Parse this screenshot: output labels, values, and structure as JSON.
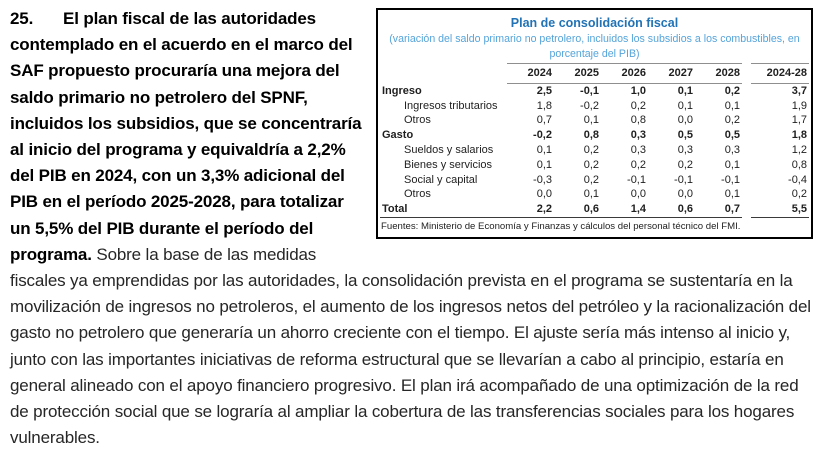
{
  "paragraph": {
    "number": "25.",
    "bold_text": "El plan fiscal de las autoridades contemplado en el acuerdo en el marco del SAF propuesto procuraría una mejora del saldo primario no petrolero del SPNF, incluidos los subsidios, que se concentraría al inicio del programa y equivaldría a 2,2% del PIB en 2024, con un 3,3% adicional del PIB en el período 2025-2028, para totalizar un 5,5% del PIB durante el período del programa.",
    "regular_text": "Sobre la base de las medidas fiscales ya emprendidas por las autoridades, la consolidación prevista en el programa se sustentaría en la movilización de ingresos no petroleros, el aumento de los ingresos netos del petróleo y la racionalización del gasto no petrolero que generaría un ahorro creciente con el tiempo. El ajuste sería más intenso al inicio y, junto con las importantes iniciativas de reforma estructural que se llevarían a cabo al principio, estaría en general alineado con el apoyo financiero progresivo. El plan irá acompañado de una optimización de la red de protección social que se lograría al ampliar la cobertura de las transferencias sociales para los hogares vulnerables."
  },
  "table": {
    "title": "Plan de consolidación fiscal",
    "subtitle": "(variación del saldo primario no petrolero, incluidos los subsidios a los combustibles, en porcentaje del PIB)",
    "columns": [
      "2024",
      "2025",
      "2026",
      "2027",
      "2028",
      "2024-28"
    ],
    "rows": [
      {
        "label": "Ingreso",
        "bold": true,
        "indent": false,
        "values": [
          "2,5",
          "-0,1",
          "1,0",
          "0,1",
          "0,2",
          "3,7"
        ]
      },
      {
        "label": "Ingresos tributarios",
        "bold": false,
        "indent": true,
        "values": [
          "1,8",
          "-0,2",
          "0,2",
          "0,1",
          "0,1",
          "1,9"
        ]
      },
      {
        "label": "Otros",
        "bold": false,
        "indent": true,
        "values": [
          "0,7",
          "0,1",
          "0,8",
          "0,0",
          "0,2",
          "1,7"
        ]
      },
      {
        "label": "Gasto",
        "bold": true,
        "indent": false,
        "values": [
          "-0,2",
          "0,8",
          "0,3",
          "0,5",
          "0,5",
          "1,8"
        ]
      },
      {
        "label": "Sueldos y salarios",
        "bold": false,
        "indent": true,
        "values": [
          "0,1",
          "0,2",
          "0,3",
          "0,3",
          "0,3",
          "1,2"
        ]
      },
      {
        "label": "Bienes y servicios",
        "bold": false,
        "indent": true,
        "values": [
          "0,1",
          "0,2",
          "0,2",
          "0,2",
          "0,1",
          "0,8"
        ]
      },
      {
        "label": "Social y capital",
        "bold": false,
        "indent": true,
        "values": [
          "-0,3",
          "0,2",
          "-0,1",
          "-0,1",
          "-0,1",
          "-0,4"
        ]
      },
      {
        "label": "Otros",
        "bold": false,
        "indent": true,
        "values": [
          "0,0",
          "0,1",
          "0,0",
          "0,0",
          "0,1",
          "0,2"
        ]
      },
      {
        "label": "Total",
        "bold": true,
        "indent": false,
        "values": [
          "2,2",
          "0,6",
          "1,4",
          "0,6",
          "0,7",
          "5,5"
        ]
      }
    ],
    "source": "Fuentes: Ministerio de Economía y Finanzas y cálculos del personal técnico del FMI.",
    "colors": {
      "title": "#2173B6",
      "subtitle": "#55A4DA",
      "header_rule": "#8f8f8f",
      "total_rule": "#3a3a3a",
      "border": "#000000"
    }
  }
}
